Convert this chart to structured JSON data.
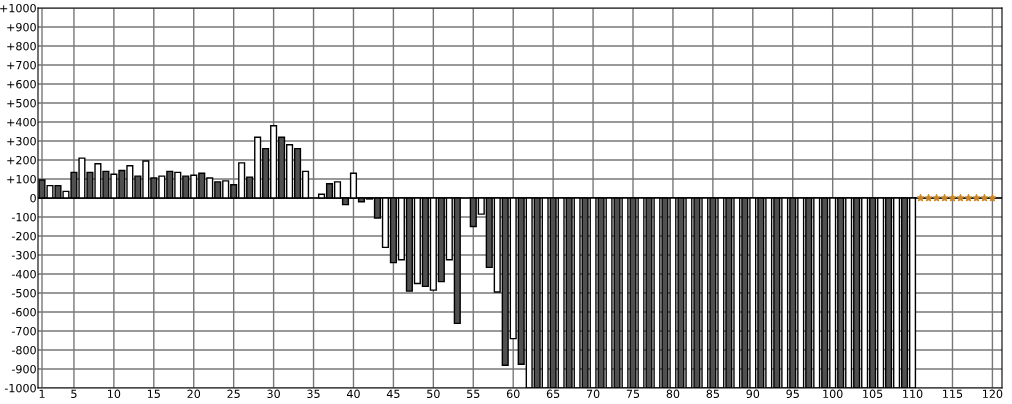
{
  "chart_data": {
    "type": "bar",
    "xlim": [
      0.5,
      121.2
    ],
    "ylim": [
      -1000,
      1000
    ],
    "xticks": [
      1,
      5,
      10,
      15,
      20,
      25,
      30,
      35,
      40,
      45,
      50,
      55,
      60,
      65,
      70,
      75,
      80,
      85,
      90,
      95,
      100,
      105,
      110,
      115,
      120
    ],
    "yticks": [
      {
        "value": -1000,
        "label": "-1000"
      },
      {
        "value": -900,
        "label": "-900"
      },
      {
        "value": -800,
        "label": "-800"
      },
      {
        "value": -700,
        "label": "-700"
      },
      {
        "value": -600,
        "label": "-600"
      },
      {
        "value": -500,
        "label": "-500"
      },
      {
        "value": -400,
        "label": "-400"
      },
      {
        "value": -300,
        "label": "-300"
      },
      {
        "value": -200,
        "label": "-200"
      },
      {
        "value": -100,
        "label": "-100"
      },
      0,
      {
        "value": 100,
        "label": "+100"
      },
      {
        "value": 200,
        "label": "+200"
      },
      {
        "value": 300,
        "label": "+300"
      },
      {
        "value": 400,
        "label": "+400"
      },
      {
        "value": 500,
        "label": "+500"
      },
      {
        "value": 600,
        "label": "+600"
      },
      {
        "value": 700,
        "label": "+700"
      },
      {
        "value": 800,
        "label": "+800"
      },
      {
        "value": 900,
        "label": "+900"
      },
      {
        "value": 1000,
        "label": "+1000"
      }
    ],
    "grid": true,
    "series": [
      {
        "color": "#505050",
        "x": [
          1,
          3,
          5,
          7,
          9,
          11,
          13,
          15,
          17,
          19,
          21,
          23,
          25,
          27,
          29,
          31,
          33,
          35,
          37,
          39,
          41,
          43,
          45,
          47,
          49,
          51,
          53,
          55,
          57,
          59,
          61,
          63,
          65,
          67,
          69,
          71,
          73,
          75,
          77,
          79,
          81,
          83,
          85,
          87,
          89,
          91,
          93,
          95,
          97,
          99,
          101,
          103,
          105,
          107,
          109
        ],
        "values": [
          95,
          65,
          135,
          135,
          140,
          145,
          115,
          105,
          140,
          115,
          130,
          85,
          70,
          110,
          260,
          320,
          260,
          null,
          75,
          -35,
          -20,
          -105,
          -340,
          -490,
          -465,
          -440,
          -660,
          -150,
          -365,
          -880,
          -875,
          -1000,
          -1000,
          -1000,
          -1000,
          -1000,
          -1000,
          -1000,
          -1000,
          -1000,
          -1000,
          -1000,
          -1000,
          -1000,
          -1000,
          -1000,
          -1000,
          -1000,
          -1000,
          -1000,
          -1000,
          -1000,
          -1000,
          -1000,
          -1000
        ]
      },
      {
        "color": "#ffffff",
        "x": [
          2,
          4,
          6,
          8,
          10,
          12,
          14,
          16,
          18,
          20,
          22,
          24,
          26,
          28,
          30,
          32,
          34,
          36,
          38,
          40,
          42,
          44,
          46,
          48,
          50,
          52,
          54,
          56,
          58,
          60,
          62,
          64,
          66,
          68,
          70,
          72,
          74,
          76,
          78,
          80,
          82,
          84,
          86,
          88,
          90,
          92,
          94,
          96,
          98,
          100,
          102,
          104,
          106,
          108,
          110
        ],
        "values": [
          65,
          35,
          210,
          180,
          125,
          170,
          195,
          115,
          135,
          120,
          105,
          90,
          185,
          320,
          380,
          280,
          140,
          20,
          85,
          130,
          -5,
          -260,
          -325,
          -450,
          -485,
          -325,
          null,
          -85,
          -495,
          -740,
          -1000,
          -1000,
          -1000,
          -1000,
          -1000,
          -1000,
          -1000,
          -1000,
          -1000,
          -1000,
          -1000,
          -1000,
          -1000,
          -1000,
          -1000,
          -1000,
          -1000,
          -1000,
          -1000,
          -1000,
          -1000,
          -1000,
          -1000,
          -1000,
          -1000
        ]
      },
      {
        "type": "scatter",
        "marker": "star",
        "color": "#c8872a",
        "x": [
          111,
          112,
          113,
          114,
          115,
          116,
          117,
          118,
          119,
          120
        ],
        "values": [
          0,
          0,
          0,
          0,
          0,
          0,
          0,
          0,
          0,
          0
        ]
      }
    ]
  }
}
